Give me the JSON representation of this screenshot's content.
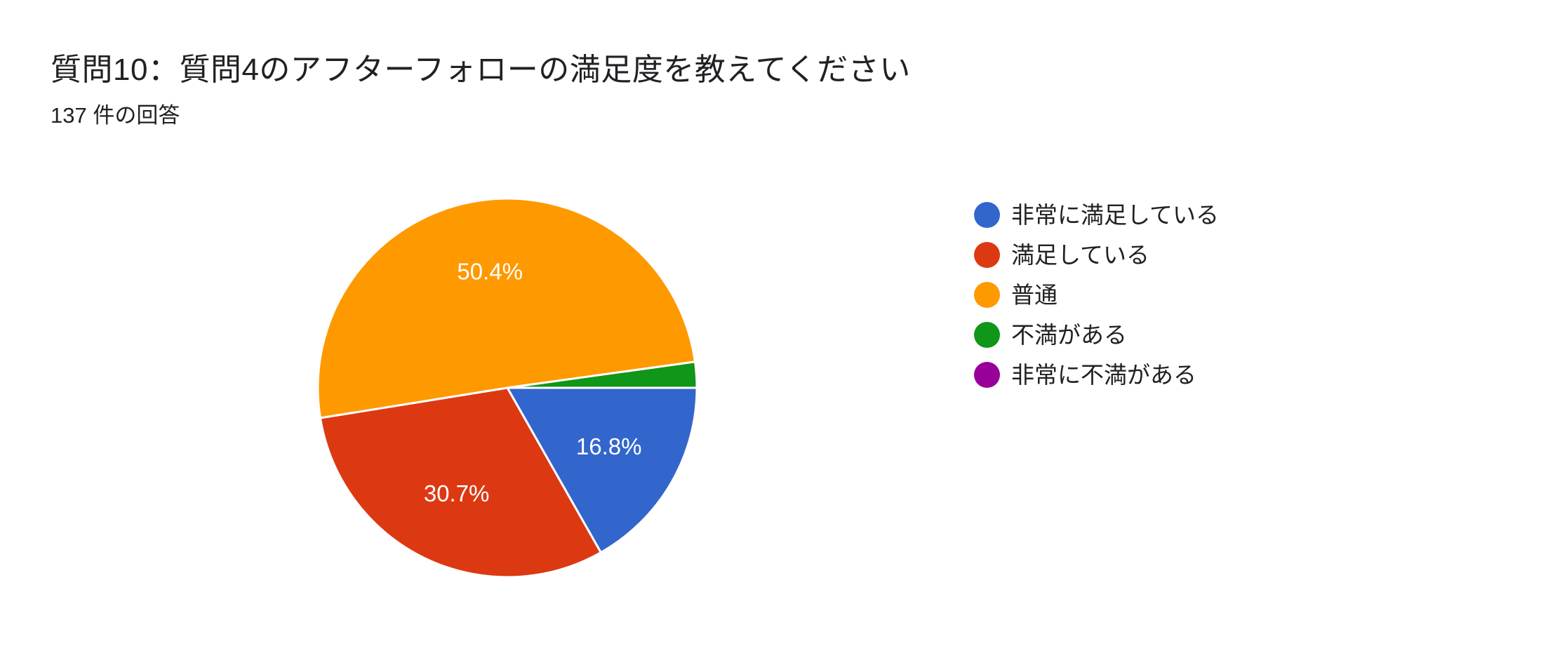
{
  "header": {
    "title": "質問10：質問4のアフターフォローの満足度を教えてください",
    "response_count": "137 件の回答"
  },
  "chart_data": {
    "type": "pie",
    "title": "質問10：質問4のアフターフォローの満足度を教えてください",
    "subtitle": "137 件の回答",
    "total_responses": 137,
    "start_angle_deg": 0,
    "direction": "clockwise",
    "categories": [
      "非常に満足している",
      "満足している",
      "普通",
      "不満がある",
      "非常に不満がある"
    ],
    "values": [
      16.8,
      30.7,
      50.4,
      2.2,
      0.0
    ],
    "counts_estimated": [
      23,
      42,
      69,
      3,
      0
    ],
    "labels_shown": [
      "16.8%",
      "30.7%",
      "50.4%",
      "",
      ""
    ],
    "colors": [
      "#3366cc",
      "#dc3912",
      "#ff9900",
      "#109618",
      "#990099"
    ],
    "legend_position": "right",
    "center": [
      723,
      553
    ],
    "radius": 270
  },
  "legend": {
    "items": [
      {
        "label": "非常に満足している",
        "color": "#3366cc"
      },
      {
        "label": "満足している",
        "color": "#dc3912"
      },
      {
        "label": "普通",
        "color": "#ff9900"
      },
      {
        "label": "不満がある",
        "color": "#109618"
      },
      {
        "label": "非常に不満がある",
        "color": "#990099"
      }
    ]
  }
}
